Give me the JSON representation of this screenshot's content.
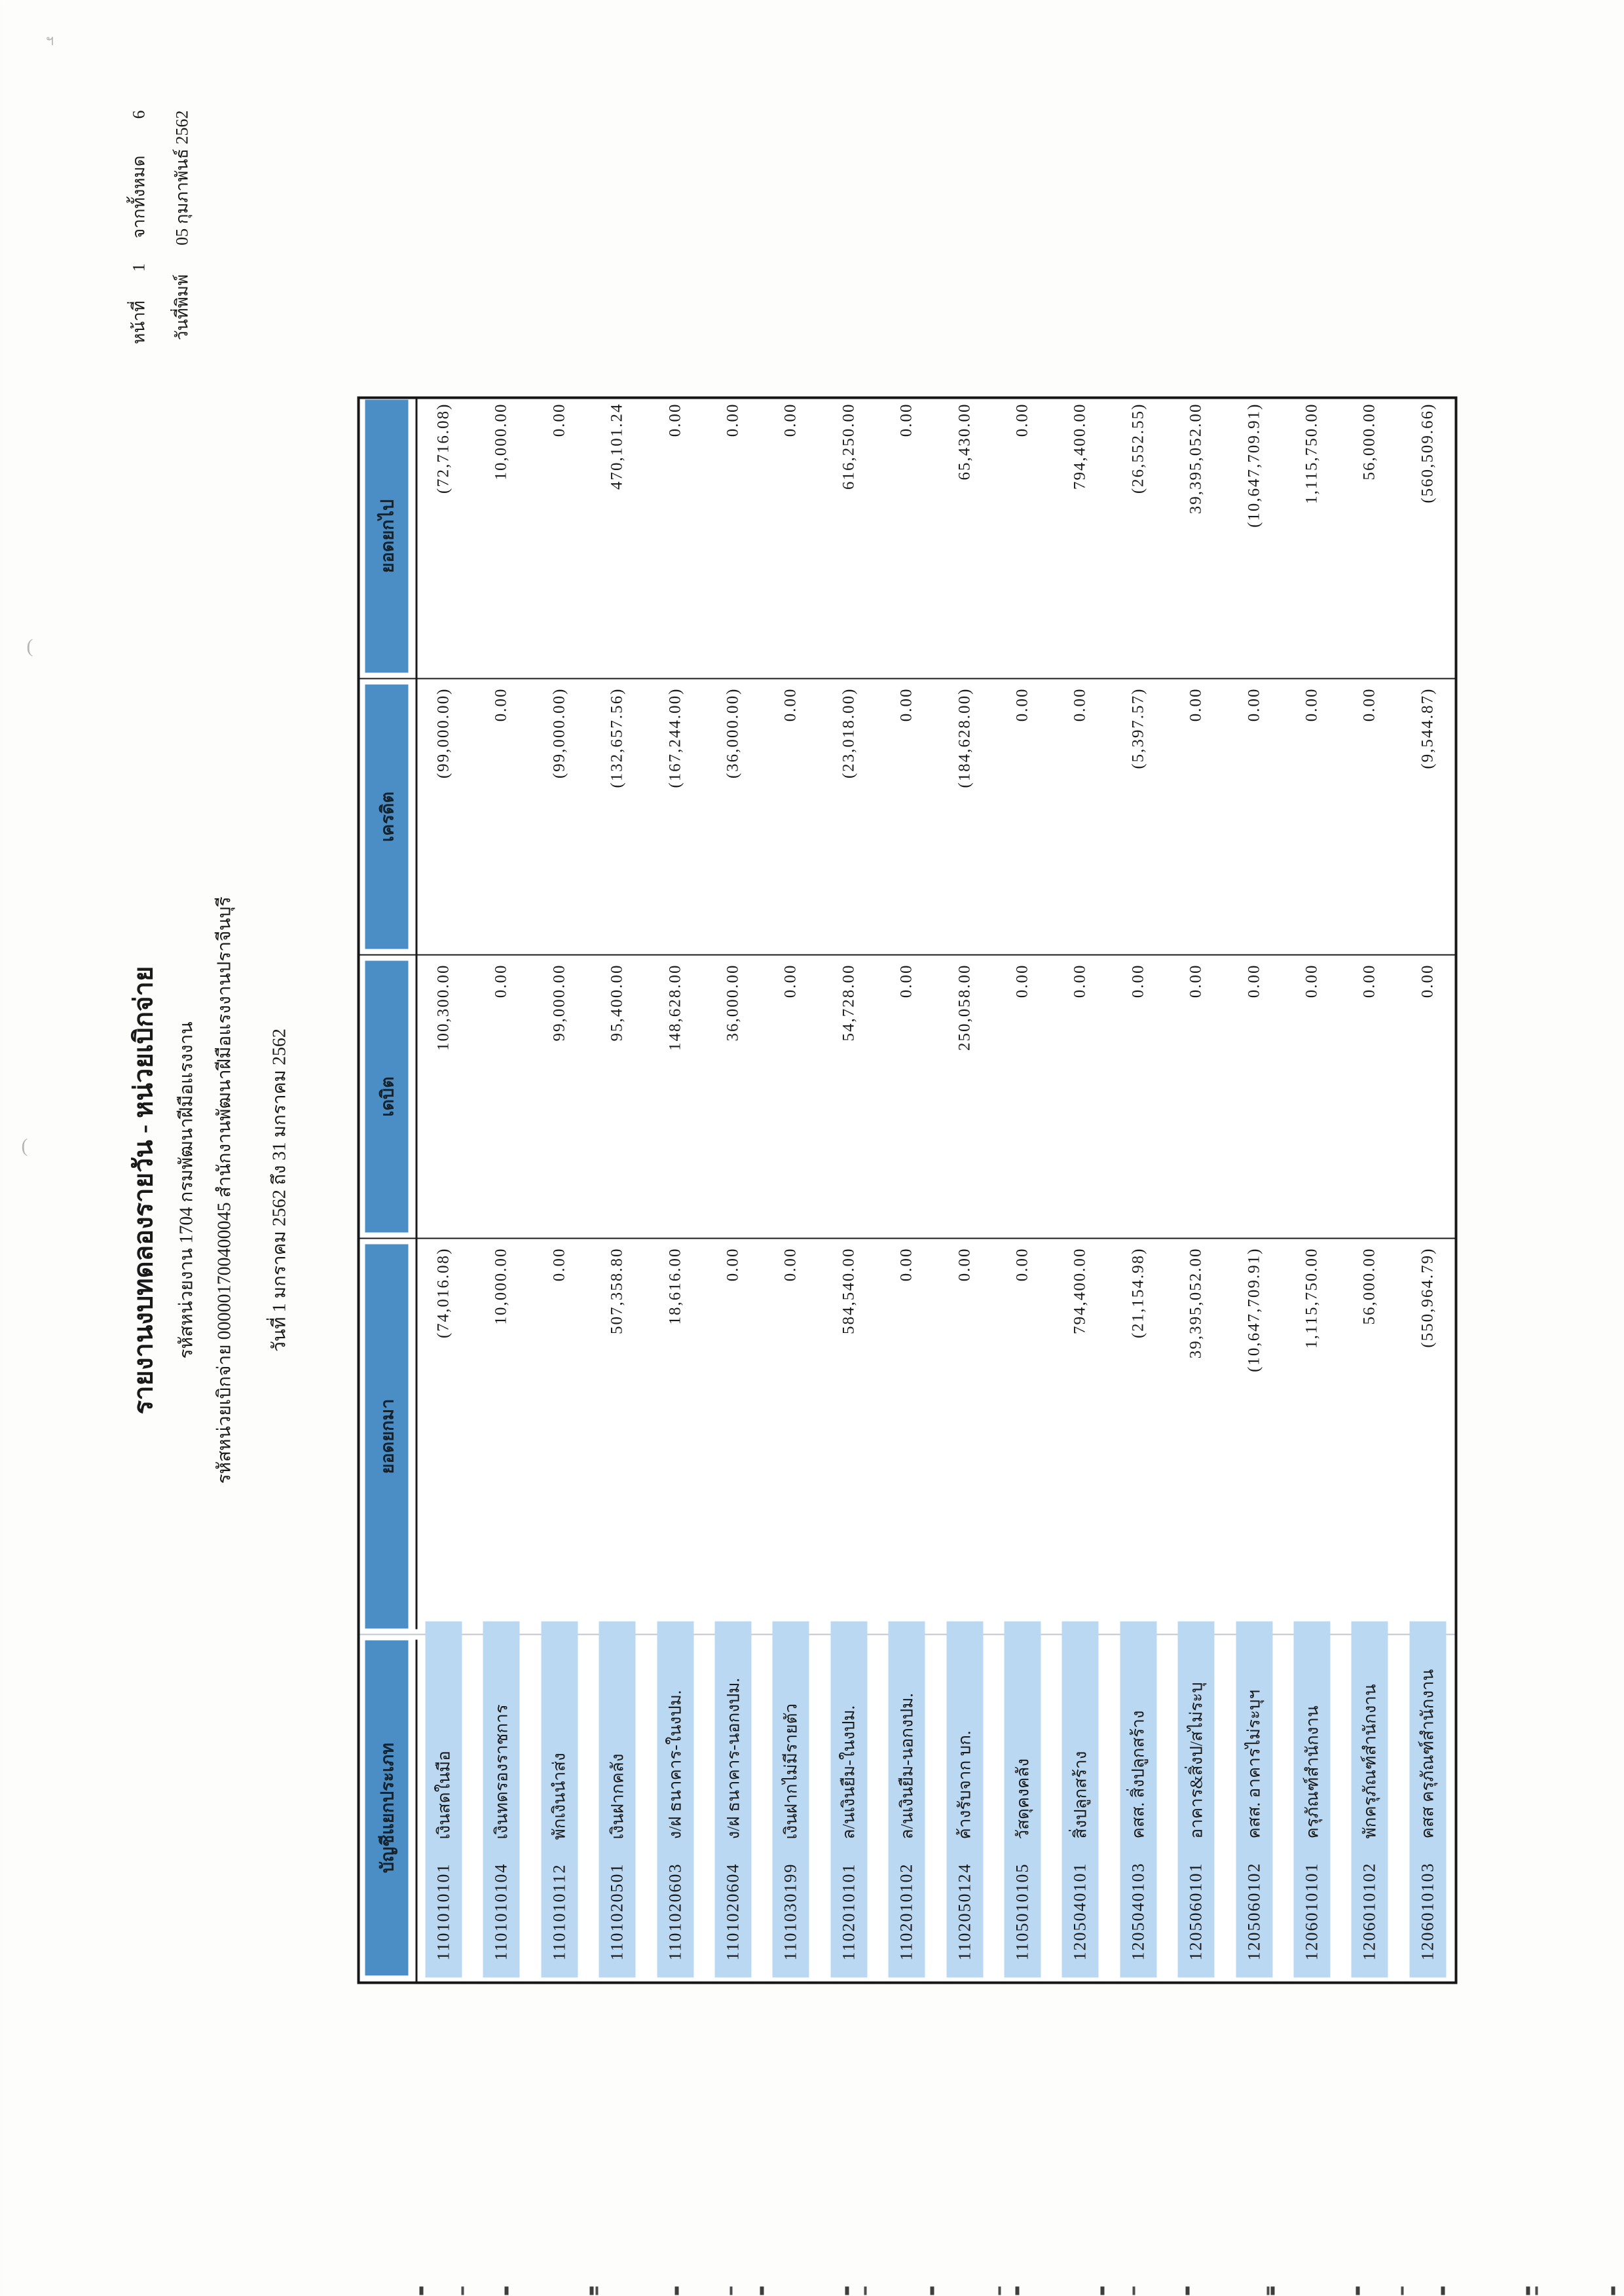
{
  "page_header": {
    "page_label": "หน้าที่",
    "page_number": "1",
    "of_label": "จากทั้งหมด",
    "total_pages": "6",
    "print_date_label": "วันที่พิมพ์",
    "print_date": "05 กุมภาพันธ์ 2562"
  },
  "title": {
    "report_title": "รายงานงบทดลองรายวัน - หน่วยเบิกจ่าย",
    "agency_line": "รหัสหน่วยงาน 1704 กรมพัฒนาฝีมือแรงงาน",
    "unit_line": "รหัสหน่วยเบิกจ่าย 000001700400045 สำนักงานพัฒนาฝีมือแรงงานปราจีนบุรี",
    "period_line": "วันที่ 1 มกราคม 2562 ถึง 31 มกราคม 2562"
  },
  "table": {
    "columns": [
      "บัญชีแยกประเภท",
      "ยอดยกมา",
      "เดบิต",
      "เครดิต",
      "ยอดยกไป"
    ],
    "rows": [
      {
        "code": "1101010101",
        "name": "เงินสดในมือ",
        "opening": "(74,016.08)",
        "debit": "100,300.00",
        "credit": "(99,000.00)",
        "closing": "(72,716.08)"
      },
      {
        "code": "1101010104",
        "name": "เงินทดรองราชการ",
        "opening": "10,000.00",
        "debit": "0.00",
        "credit": "0.00",
        "closing": "10,000.00"
      },
      {
        "code": "1101010112",
        "name": "พักเงินนำส่ง",
        "opening": "0.00",
        "debit": "99,000.00",
        "credit": "(99,000.00)",
        "closing": "0.00"
      },
      {
        "code": "1101020501",
        "name": "เงินฝากคลัง",
        "opening": "507,358.80",
        "debit": "95,400.00",
        "credit": "(132,657.56)",
        "closing": "470,101.24"
      },
      {
        "code": "1101020603",
        "name": "ง/ฝ ธนาคาร-ในงปม.",
        "opening": "18,616.00",
        "debit": "148,628.00",
        "credit": "(167,244.00)",
        "closing": "0.00"
      },
      {
        "code": "1101020604",
        "name": "ง/ฝ ธนาคาร-นอกงปม.",
        "opening": "0.00",
        "debit": "36,000.00",
        "credit": "(36,000.00)",
        "closing": "0.00"
      },
      {
        "code": "1101030199",
        "name": "เงินฝากไม่มีรายตัว",
        "opening": "0.00",
        "debit": "0.00",
        "credit": "0.00",
        "closing": "0.00"
      },
      {
        "code": "1102010101",
        "name": "ล/นเงินยืม-ในงปม.",
        "opening": "584,540.00",
        "debit": "54,728.00",
        "credit": "(23,018.00)",
        "closing": "616,250.00"
      },
      {
        "code": "1102010102",
        "name": "ล/นเงินยืม-นอกงปม.",
        "opening": "0.00",
        "debit": "0.00",
        "credit": "0.00",
        "closing": "0.00"
      },
      {
        "code": "1102050124",
        "name": "ค้างรับจาก บก.",
        "opening": "0.00",
        "debit": "250,058.00",
        "credit": "(184,628.00)",
        "closing": "65,430.00"
      },
      {
        "code": "1105010105",
        "name": "วัสดุคงคลัง",
        "opening": "0.00",
        "debit": "0.00",
        "credit": "0.00",
        "closing": "0.00"
      },
      {
        "code": "1205040101",
        "name": "สิ่งปลูกสร้าง",
        "opening": "794,400.00",
        "debit": "0.00",
        "credit": "0.00",
        "closing": "794,400.00"
      },
      {
        "code": "1205040103",
        "name": "คสส. สิ่งปลูกสร้าง",
        "opening": "(21,154.98)",
        "debit": "0.00",
        "credit": "(5,397.57)",
        "closing": "(26,552.55)"
      },
      {
        "code": "1205060101",
        "name": "อาคาร&สิ่งป/สไม่ระบุ",
        "opening": "39,395,052.00",
        "debit": "0.00",
        "credit": "0.00",
        "closing": "39,395,052.00"
      },
      {
        "code": "1205060102",
        "name": "คสส. อาคารไม่ระบุฯ",
        "opening": "(10,647,709.91)",
        "debit": "0.00",
        "credit": "0.00",
        "closing": "(10,647,709.91)"
      },
      {
        "code": "1206010101",
        "name": "ครุภัณฑ์สำนักงาน",
        "opening": "1,115,750.00",
        "debit": "0.00",
        "credit": "0.00",
        "closing": "1,115,750.00"
      },
      {
        "code": "1206010102",
        "name": "พักครุภัณฑ์สำนักงาน",
        "opening": "56,000.00",
        "debit": "0.00",
        "credit": "0.00",
        "closing": "56,000.00"
      },
      {
        "code": "1206010103",
        "name": "คสส ครุภัณฑ์สำนักงาน",
        "opening": "(550,964.79)",
        "debit": "0.00",
        "credit": "(9,544.87)",
        "closing": "(560,509.66)"
      }
    ]
  },
  "colors": {
    "header_blue": "#4b8ec5",
    "stripe_blue": "#bad8f1",
    "grid_dark": "#1a1a1a"
  }
}
